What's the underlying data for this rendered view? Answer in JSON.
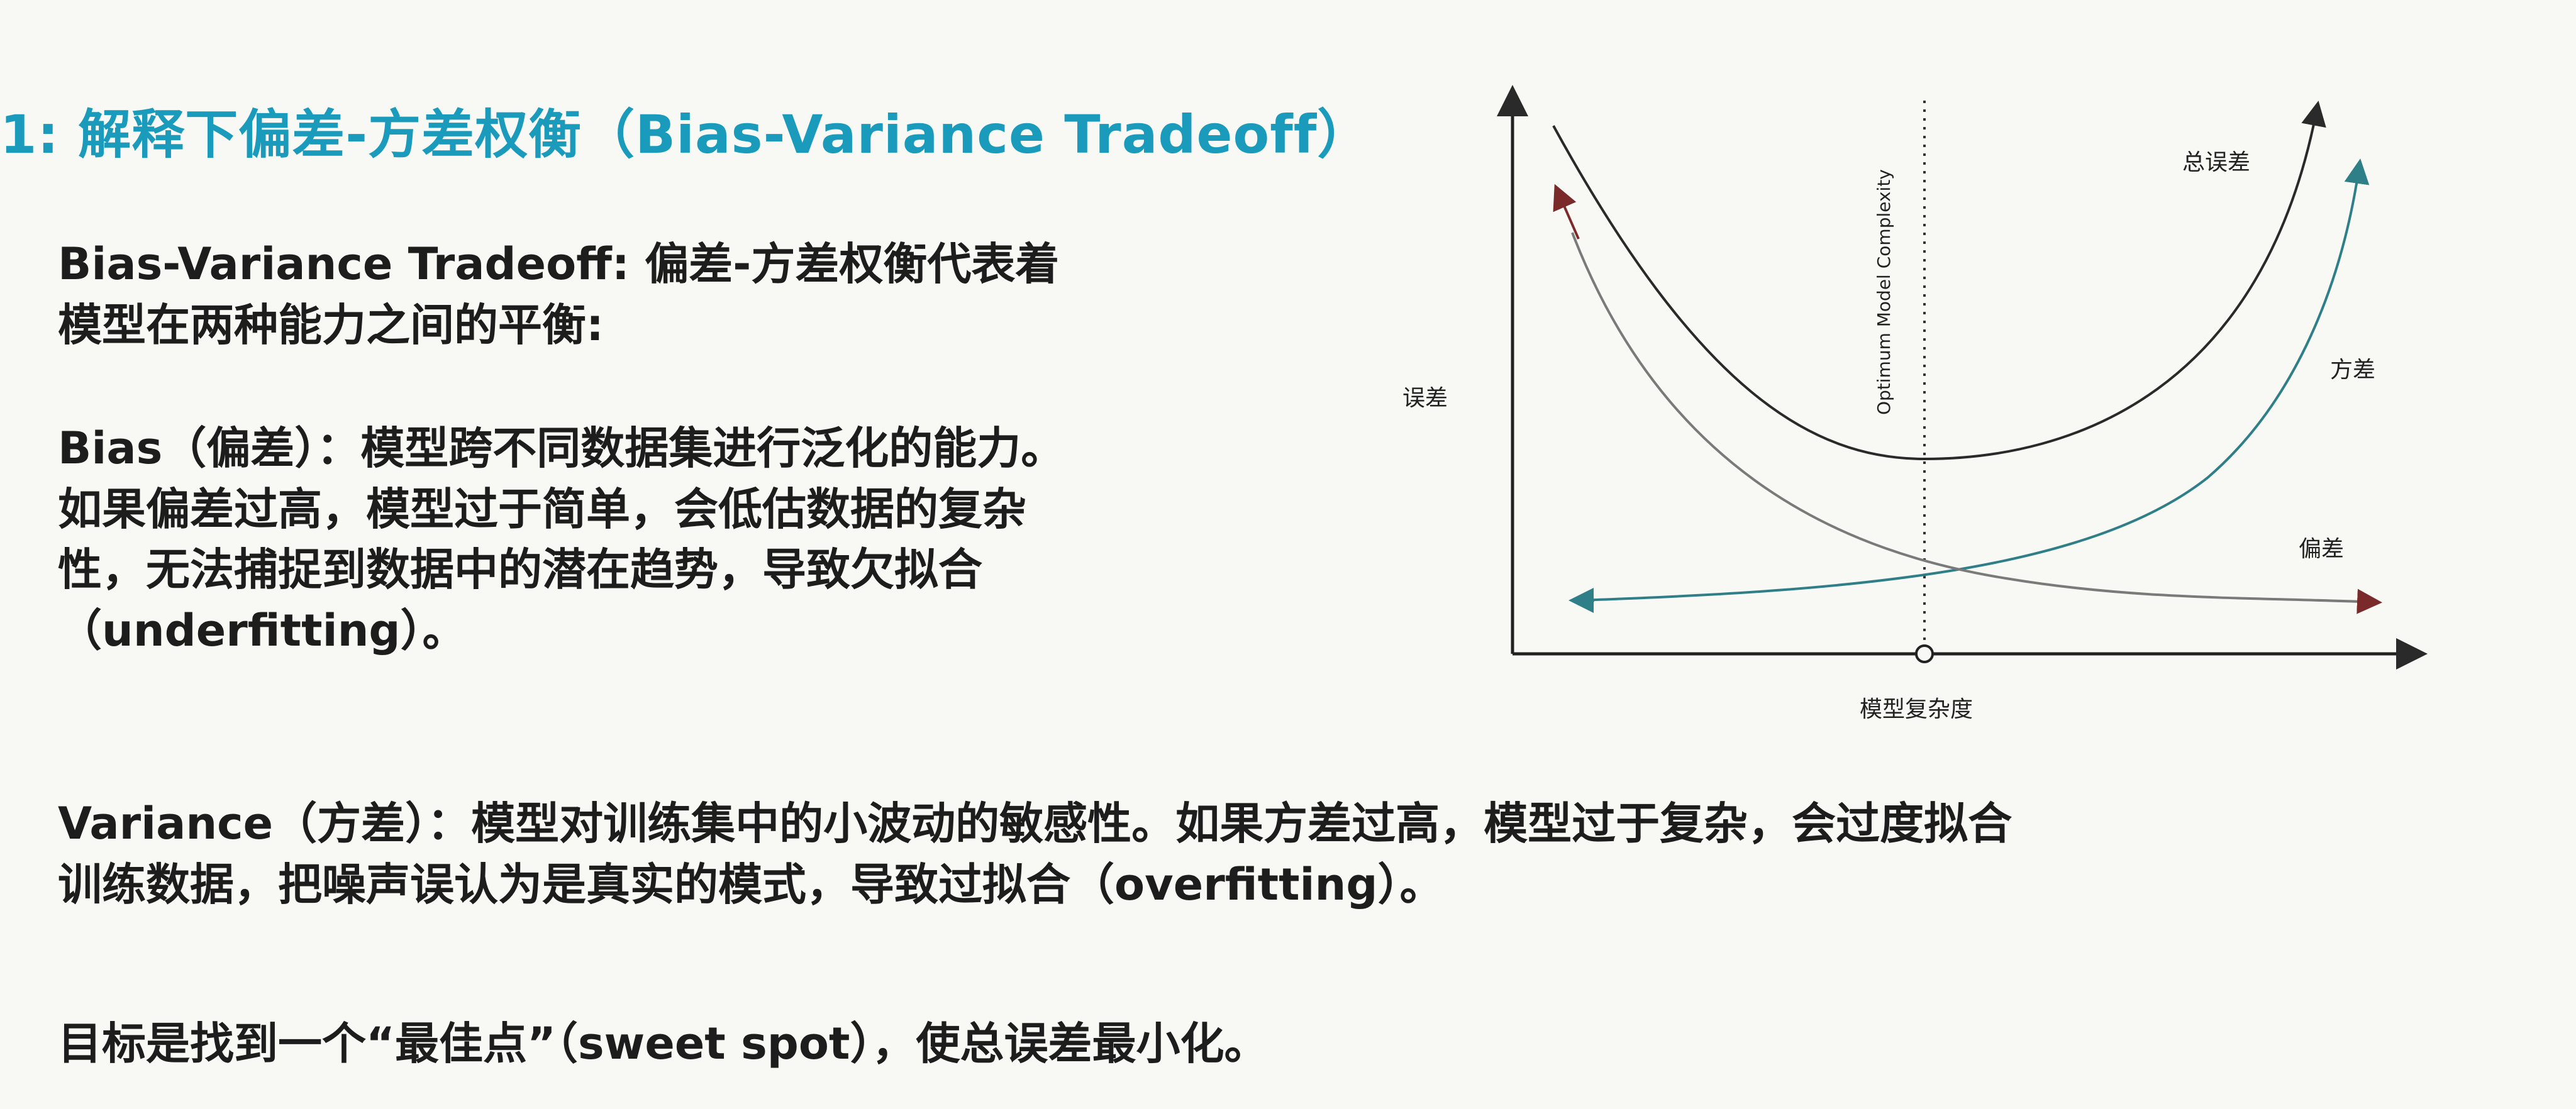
{
  "title": "1: 解释下偏差-方差权衡（Bias-Variance Tradeoff）",
  "content": {
    "intro": {
      "lines": [
        "Bias-Variance Tradeoff: 偏差-方差权衡代表着",
        "模型在两种能力之间的平衡:"
      ]
    },
    "bias": {
      "lines": [
        "Bias（偏差）：模型跨不同数据集进行泛化的能力。",
        "如果偏差过高，模型过于简单，会低估数据的复杂",
        "性，无法捕捉到数据中的潜在趋势，导致欠拟合",
        "（underfitting）。"
      ]
    },
    "variance": {
      "lines": [
        "Variance（方差）：模型对训练集中的小波动的敏感性。如果方差过高，模型过于复杂，会过度拟合",
        "训练数据，把噪声误认为是真实的模式，导致过拟合（overfitting）。"
      ]
    },
    "goal": {
      "lines": [
        "目标是找到一个“最佳点”（sweet spot），使总误差最小化。"
      ]
    }
  },
  "diagram": {
    "y_axis_label": "误差",
    "x_axis_label": "模型复杂度",
    "optimum_label": "Optimum Model Complexity",
    "curve_labels": {
      "total_error": "总误差",
      "variance": "方差",
      "bias": "偏差"
    },
    "colors": {
      "total_error": "#2a2a2a",
      "variance": "#2f7f88",
      "bias": "#7a2a2a",
      "axis": "#222222"
    }
  }
}
